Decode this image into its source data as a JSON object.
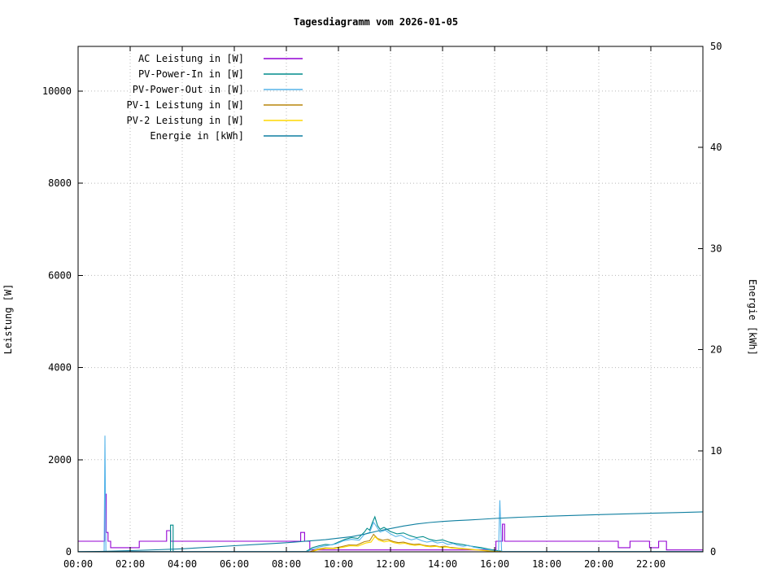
{
  "title": "Tagesdiagramm vom 2026-01-05",
  "left_axis": {
    "label": "Leistung [W]",
    "min": 0,
    "max": 10970,
    "ticks": [
      0,
      2000,
      4000,
      6000,
      8000,
      10000
    ]
  },
  "right_axis": {
    "label": "Energie [kWh]",
    "min": 0,
    "max": 50,
    "ticks": [
      0,
      10,
      20,
      30,
      40,
      50
    ]
  },
  "x_axis": {
    "min": 0,
    "max": 24,
    "tick_hours": [
      0,
      2,
      4,
      6,
      8,
      10,
      12,
      14,
      16,
      18,
      20,
      22
    ],
    "tick_labels": [
      "00:00",
      "02:00",
      "04:00",
      "06:00",
      "08:00",
      "10:00",
      "12:00",
      "14:00",
      "16:00",
      "18:00",
      "20:00",
      "22:00"
    ]
  },
  "grid": {
    "color": "#b8b8b8",
    "style": "dotted"
  },
  "chart_data": {
    "type": "line",
    "title": "Tagesdiagramm vom 2026-01-05",
    "xlabel": "",
    "ylabel": "Leistung [W]",
    "y2label": "Energie [kWh]",
    "ylim": [
      0,
      10970
    ],
    "y2lim": [
      0,
      50
    ],
    "xlim_hours": [
      0,
      24
    ],
    "legend_position": "top-left-inside",
    "series": [
      {
        "name": "AC Leistung in [W]",
        "color": "#9400d3",
        "axis": "left",
        "points": [
          [
            0,
            230
          ],
          [
            1.02,
            230
          ],
          [
            1.02,
            1250
          ],
          [
            1.08,
            1250
          ],
          [
            1.08,
            420
          ],
          [
            1.15,
            420
          ],
          [
            1.15,
            230
          ],
          [
            1.25,
            230
          ],
          [
            1.25,
            90
          ],
          [
            2.35,
            90
          ],
          [
            2.35,
            230
          ],
          [
            3.4,
            230
          ],
          [
            3.4,
            460
          ],
          [
            3.55,
            460
          ],
          [
            3.55,
            230
          ],
          [
            8.55,
            230
          ],
          [
            8.55,
            420
          ],
          [
            8.7,
            420
          ],
          [
            8.7,
            230
          ],
          [
            8.9,
            230
          ],
          [
            8.9,
            40
          ],
          [
            16.05,
            40
          ],
          [
            16.05,
            230
          ],
          [
            16.3,
            230
          ],
          [
            16.3,
            600
          ],
          [
            16.38,
            600
          ],
          [
            16.38,
            230
          ],
          [
            20.75,
            230
          ],
          [
            20.75,
            90
          ],
          [
            21.2,
            90
          ],
          [
            21.2,
            230
          ],
          [
            21.95,
            230
          ],
          [
            21.95,
            90
          ],
          [
            22.3,
            90
          ],
          [
            22.3,
            230
          ],
          [
            22.6,
            230
          ],
          [
            22.6,
            40
          ],
          [
            24,
            40
          ]
        ]
      },
      {
        "name": "PV-Power-In in [W]",
        "color": "#008b8b",
        "axis": "left",
        "points": [
          [
            0,
            5
          ],
          [
            3.55,
            5
          ],
          [
            3.55,
            580
          ],
          [
            3.65,
            580
          ],
          [
            3.65,
            5
          ],
          [
            8.75,
            5
          ],
          [
            9,
            90
          ],
          [
            9.25,
            130
          ],
          [
            9.5,
            160
          ],
          [
            9.75,
            150
          ],
          [
            10,
            210
          ],
          [
            10.25,
            270
          ],
          [
            10.5,
            310
          ],
          [
            10.75,
            290
          ],
          [
            11,
            430
          ],
          [
            11.1,
            510
          ],
          [
            11.2,
            470
          ],
          [
            11.3,
            630
          ],
          [
            11.4,
            760
          ],
          [
            11.5,
            570
          ],
          [
            11.6,
            490
          ],
          [
            11.75,
            530
          ],
          [
            12,
            440
          ],
          [
            12.25,
            390
          ],
          [
            12.5,
            410
          ],
          [
            12.75,
            350
          ],
          [
            13,
            310
          ],
          [
            13.25,
            330
          ],
          [
            13.5,
            270
          ],
          [
            13.75,
            240
          ],
          [
            14,
            260
          ],
          [
            14.25,
            210
          ],
          [
            14.5,
            180
          ],
          [
            14.75,
            160
          ],
          [
            15,
            130
          ],
          [
            15.25,
            110
          ],
          [
            15.5,
            90
          ],
          [
            15.75,
            60
          ],
          [
            16,
            35
          ],
          [
            16.3,
            10
          ],
          [
            16.4,
            5
          ],
          [
            24,
            5
          ]
        ]
      },
      {
        "name": "PV-Power-Out in [W]",
        "color": "#56b4e9",
        "axis": "left",
        "points": [
          [
            0,
            5
          ],
          [
            1.0,
            5
          ],
          [
            1.03,
            2520
          ],
          [
            1.07,
            5
          ],
          [
            8.8,
            5
          ],
          [
            9,
            60
          ],
          [
            9.3,
            110
          ],
          [
            9.6,
            140
          ],
          [
            9.9,
            170
          ],
          [
            10.2,
            240
          ],
          [
            10.5,
            270
          ],
          [
            10.8,
            250
          ],
          [
            11,
            380
          ],
          [
            11.2,
            420
          ],
          [
            11.35,
            640
          ],
          [
            11.45,
            560
          ],
          [
            11.6,
            430
          ],
          [
            11.8,
            470
          ],
          [
            12,
            390
          ],
          [
            12.2,
            330
          ],
          [
            12.4,
            360
          ],
          [
            12.6,
            300
          ],
          [
            12.8,
            260
          ],
          [
            13,
            290
          ],
          [
            13.2,
            240
          ],
          [
            13.4,
            210
          ],
          [
            13.6,
            230
          ],
          [
            13.8,
            190
          ],
          [
            14,
            210
          ],
          [
            14.2,
            160
          ],
          [
            14.4,
            180
          ],
          [
            14.6,
            140
          ],
          [
            14.8,
            120
          ],
          [
            15,
            140
          ],
          [
            15.2,
            100
          ],
          [
            15.4,
            80
          ],
          [
            15.6,
            60
          ],
          [
            15.8,
            40
          ],
          [
            16,
            20
          ],
          [
            16.15,
            10
          ],
          [
            16.2,
            1120
          ],
          [
            16.27,
            10
          ],
          [
            16.4,
            5
          ],
          [
            24,
            5
          ]
        ]
      },
      {
        "name": "PV-1 Leistung in [W]",
        "color": "#b8860b",
        "axis": "left",
        "points": [
          [
            0,
            0
          ],
          [
            8.9,
            0
          ],
          [
            9.2,
            60
          ],
          [
            9.5,
            85
          ],
          [
            9.8,
            80
          ],
          [
            10.1,
            110
          ],
          [
            10.4,
            150
          ],
          [
            10.7,
            145
          ],
          [
            11,
            220
          ],
          [
            11.2,
            240
          ],
          [
            11.35,
            380
          ],
          [
            11.5,
            290
          ],
          [
            11.7,
            250
          ],
          [
            11.9,
            270
          ],
          [
            12.1,
            225
          ],
          [
            12.3,
            200
          ],
          [
            12.5,
            210
          ],
          [
            12.7,
            180
          ],
          [
            12.9,
            160
          ],
          [
            13.1,
            170
          ],
          [
            13.3,
            140
          ],
          [
            13.5,
            125
          ],
          [
            13.7,
            135
          ],
          [
            13.9,
            110
          ],
          [
            14.1,
            120
          ],
          [
            14.3,
            95
          ],
          [
            14.5,
            85
          ],
          [
            14.7,
            75
          ],
          [
            14.9,
            65
          ],
          [
            15.1,
            55
          ],
          [
            15.3,
            45
          ],
          [
            15.5,
            35
          ],
          [
            15.7,
            25
          ],
          [
            15.9,
            15
          ],
          [
            16.1,
            5
          ],
          [
            16.3,
            0
          ],
          [
            24,
            0
          ]
        ]
      },
      {
        "name": "PV-2 Leistung in [W]",
        "color": "#ffd700",
        "axis": "left",
        "points": [
          [
            0,
            0
          ],
          [
            8.95,
            0
          ],
          [
            9.25,
            50
          ],
          [
            9.55,
            75
          ],
          [
            9.85,
            70
          ],
          [
            10.15,
            95
          ],
          [
            10.45,
            130
          ],
          [
            10.75,
            125
          ],
          [
            11.05,
            190
          ],
          [
            11.25,
            210
          ],
          [
            11.4,
            330
          ],
          [
            11.55,
            250
          ],
          [
            11.75,
            215
          ],
          [
            11.95,
            235
          ],
          [
            12.15,
            195
          ],
          [
            12.35,
            175
          ],
          [
            12.55,
            185
          ],
          [
            12.75,
            155
          ],
          [
            12.95,
            140
          ],
          [
            13.15,
            150
          ],
          [
            13.35,
            120
          ],
          [
            13.55,
            110
          ],
          [
            13.75,
            118
          ],
          [
            13.95,
            95
          ],
          [
            14.15,
            105
          ],
          [
            14.35,
            82
          ],
          [
            14.55,
            74
          ],
          [
            14.75,
            64
          ],
          [
            14.95,
            56
          ],
          [
            15.15,
            46
          ],
          [
            15.35,
            38
          ],
          [
            15.55,
            28
          ],
          [
            15.75,
            20
          ],
          [
            15.95,
            10
          ],
          [
            16.15,
            3
          ],
          [
            16.35,
            0
          ],
          [
            24,
            0
          ]
        ]
      },
      {
        "name": "Energie in [kWh]",
        "color": "#0f7fa0",
        "axis": "right",
        "points": [
          [
            0,
            0
          ],
          [
            1,
            0.05
          ],
          [
            2,
            0.12
          ],
          [
            3,
            0.2
          ],
          [
            4,
            0.3
          ],
          [
            5,
            0.45
          ],
          [
            6,
            0.6
          ],
          [
            7,
            0.75
          ],
          [
            8,
            0.9
          ],
          [
            8.5,
            1.0
          ],
          [
            9,
            1.1
          ],
          [
            9.5,
            1.2
          ],
          [
            10,
            1.35
          ],
          [
            10.5,
            1.5
          ],
          [
            11,
            1.75
          ],
          [
            11.5,
            2.05
          ],
          [
            12,
            2.3
          ],
          [
            12.5,
            2.55
          ],
          [
            13,
            2.75
          ],
          [
            13.5,
            2.9
          ],
          [
            14,
            3.0
          ],
          [
            14.5,
            3.08
          ],
          [
            15,
            3.15
          ],
          [
            15.5,
            3.22
          ],
          [
            16,
            3.3
          ],
          [
            17,
            3.42
          ],
          [
            18,
            3.52
          ],
          [
            19,
            3.6
          ],
          [
            20,
            3.68
          ],
          [
            21,
            3.75
          ],
          [
            22,
            3.82
          ],
          [
            23,
            3.88
          ],
          [
            24,
            3.95
          ]
        ]
      }
    ]
  }
}
